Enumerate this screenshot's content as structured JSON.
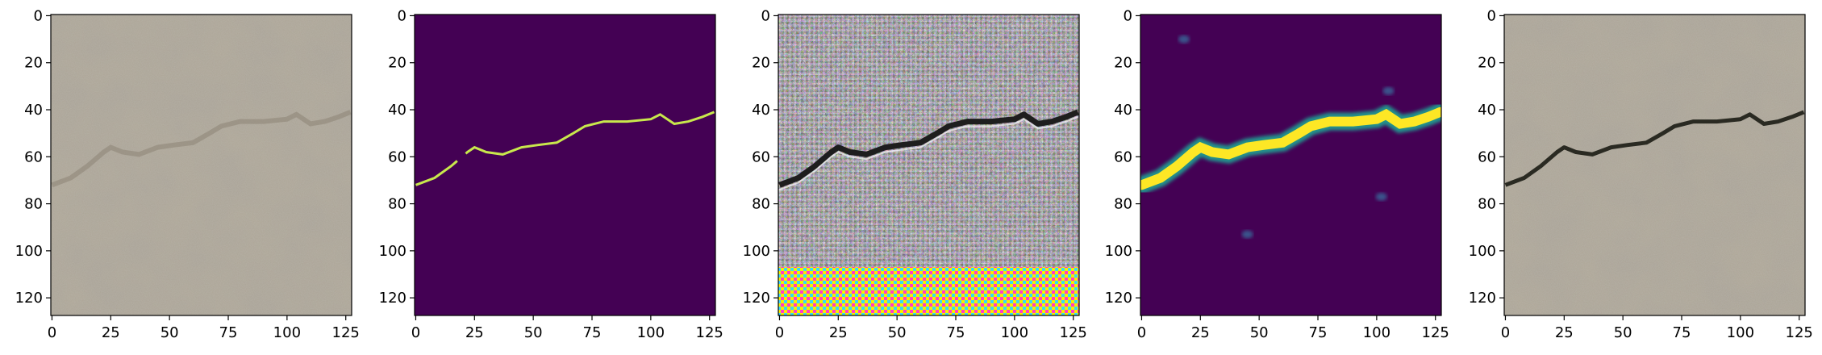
{
  "figure": {
    "panels": [
      {
        "id": "input-photo",
        "kind": "concrete_photo",
        "crack": "faint"
      },
      {
        "id": "ground-truth-mask",
        "kind": "binary_mask",
        "background_color": "#440154",
        "crack_color": "#c8e84c"
      },
      {
        "id": "generated-image",
        "kind": "artifact_photo",
        "crack": "dark"
      },
      {
        "id": "predicted-mask",
        "kind": "probability_mask",
        "background_color": "#440154",
        "crack_color": "#fde725"
      },
      {
        "id": "overlay-photo",
        "kind": "concrete_photo",
        "crack": "dark"
      }
    ],
    "axis": {
      "x_ticks": [
        "0",
        "25",
        "50",
        "75",
        "100",
        "125"
      ],
      "y_ticks": [
        "0",
        "20",
        "40",
        "60",
        "80",
        "100",
        "120"
      ],
      "x_tick_values": [
        0,
        25,
        50,
        75,
        100,
        125
      ],
      "y_tick_values": [
        0,
        20,
        40,
        60,
        80,
        100,
        120
      ],
      "range": [
        -0.5,
        127.5
      ]
    },
    "crack_path": [
      [
        0,
        72
      ],
      [
        8,
        69
      ],
      [
        15,
        64
      ],
      [
        22,
        58
      ],
      [
        25,
        56
      ],
      [
        30,
        58
      ],
      [
        37,
        59
      ],
      [
        45,
        56
      ],
      [
        52,
        55
      ],
      [
        60,
        54
      ],
      [
        67,
        50
      ],
      [
        72,
        47
      ],
      [
        80,
        45
      ],
      [
        90,
        45
      ],
      [
        100,
        44
      ],
      [
        104,
        42
      ],
      [
        110,
        46
      ],
      [
        116,
        45
      ],
      [
        122,
        43
      ],
      [
        127,
        41
      ]
    ],
    "colors": {
      "viridis_dark": "#440154",
      "viridis_yellow": "#fde725",
      "viridis_green": "#c8e84c",
      "concrete": "#aea696"
    }
  }
}
